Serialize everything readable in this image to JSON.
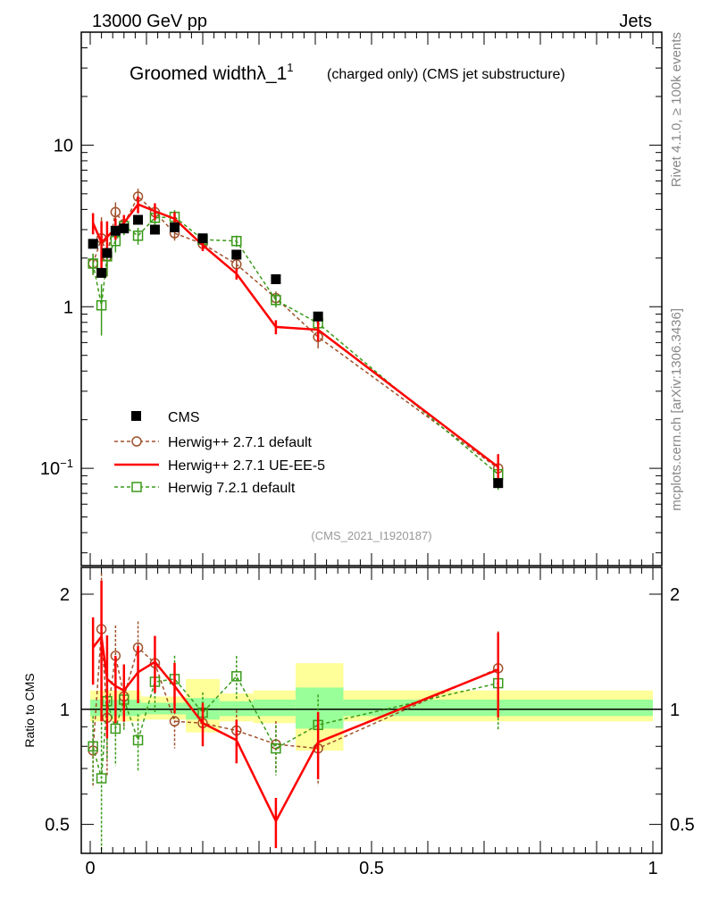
{
  "header": {
    "energy_label": "13000 GeV pp",
    "category_label": "Jets"
  },
  "plot_title": {
    "main": "Groomed width",
    "symbol": "λ_1",
    "superscript": "1",
    "subtitle": "(charged only) (CMS jet substructure)"
  },
  "side_labels": {
    "rivet": "Rivet 4.1.0, ≥ 100k events",
    "mcplots": "mcplots.cern.ch [arXiv:1306.3436]"
  },
  "analysis_id": "(CMS_2021_I1920187)",
  "colors": {
    "data": "#000000",
    "herwigpp_default": "#a0522d",
    "herwigpp_ueee5": "#ff0000",
    "herwig721": "#3a9a1a",
    "band_outer": "#ffff99",
    "band_inner": "#99ff99"
  },
  "legend": {
    "items": [
      {
        "key": "data",
        "label": "CMS"
      },
      {
        "key": "hpp_default",
        "label": "Herwig++ 2.7.1 default"
      },
      {
        "key": "hpp_ueee5",
        "label": "Herwig++ 2.7.1 UE-EE-5"
      },
      {
        "key": "h721",
        "label": "Herwig 7.2.1 default"
      }
    ]
  },
  "chart_data": [
    {
      "type": "scatter",
      "panel": "main",
      "title": "Groomed width λ_1^1 (charged only) (CMS jet substructure)",
      "xlabel": "",
      "ylabel": "",
      "yscale": "log",
      "xlim": [
        -0.015,
        1.015
      ],
      "ylim": [
        0.025,
        50
      ],
      "yticks": [
        {
          "value": 10,
          "label": "10"
        },
        {
          "value": 1,
          "label": "1"
        },
        {
          "value": 0.1,
          "label": "10",
          "sup": "−1"
        }
      ],
      "x": [
        0.005,
        0.02,
        0.03,
        0.045,
        0.06,
        0.085,
        0.115,
        0.15,
        0.2,
        0.26,
        0.33,
        0.405,
        0.725
      ],
      "series": [
        {
          "name": "CMS",
          "style": "markers-square-filled",
          "values": [
            2.45,
            1.62,
            2.15,
            2.95,
            3.05,
            3.45,
            3.0,
            3.1,
            2.65,
            2.1,
            1.48,
            0.87,
            0.081
          ]
        },
        {
          "name": "Herwig++ 2.7.1 default",
          "style": "dashed-open-circle",
          "values": [
            1.85,
            2.65,
            2.05,
            3.85,
            3.25,
            4.8,
            3.85,
            2.85,
            2.45,
            1.83,
            1.13,
            0.65,
            0.1
          ]
        },
        {
          "name": "Herwig++ 2.7.1 UE-EE-5",
          "style": "solid-line",
          "values": [
            3.3,
            2.5,
            2.7,
            3.05,
            3.3,
            4.3,
            3.9,
            3.5,
            2.4,
            1.6,
            0.75,
            0.72,
            0.102
          ]
        },
        {
          "name": "Herwig 7.2.1 default",
          "style": "dashed-open-square",
          "values": [
            1.85,
            1.02,
            2.05,
            2.55,
            3.15,
            2.75,
            3.55,
            3.6,
            2.6,
            2.55,
            1.1,
            0.79,
            0.092
          ]
        }
      ]
    },
    {
      "type": "line",
      "panel": "ratio",
      "ylabel": "Ratio to CMS",
      "xlim": [
        -0.015,
        1.015
      ],
      "ylim": [
        0.42,
        2.35
      ],
      "yscale": "log",
      "yticks": [
        {
          "value": 2,
          "label": "2"
        },
        {
          "value": 1,
          "label": "1"
        },
        {
          "value": 0.5,
          "label": "0.5"
        }
      ],
      "xticks": [
        {
          "value": 0,
          "label": "0"
        },
        {
          "value": 0.5,
          "label": "0.5"
        },
        {
          "value": 1,
          "label": "1"
        }
      ],
      "x": [
        0.005,
        0.02,
        0.03,
        0.045,
        0.06,
        0.085,
        0.115,
        0.15,
        0.2,
        0.26,
        0.33,
        0.405,
        0.725
      ],
      "series": [
        {
          "name": "Herwig++ 2.7.1 default",
          "values": [
            0.78,
            1.62,
            0.95,
            1.38,
            1.08,
            1.45,
            1.32,
            0.93,
            0.92,
            0.88,
            0.81,
            0.79,
            1.28
          ]
        },
        {
          "name": "Herwig++ 2.7.1 UE-EE-5",
          "values": [
            1.45,
            1.55,
            1.2,
            1.15,
            1.12,
            1.25,
            1.33,
            1.15,
            0.92,
            0.83,
            0.51,
            0.82,
            1.27
          ]
        },
        {
          "name": "Herwig 7.2.1 default",
          "values": [
            0.8,
            0.66,
            1.05,
            0.89,
            1.06,
            0.83,
            1.18,
            1.2,
            0.98,
            1.22,
            0.79,
            0.91,
            1.17
          ]
        }
      ],
      "uncertainty_bands": [
        {
          "x0": 0.0,
          "x1": 0.09,
          "outer": [
            0.93,
            1.12
          ],
          "inner": [
            0.96,
            1.06
          ]
        },
        {
          "x0": 0.09,
          "x1": 0.17,
          "outer": [
            0.94,
            1.08
          ],
          "inner": [
            0.97,
            1.04
          ]
        },
        {
          "x0": 0.17,
          "x1": 0.23,
          "outer": [
            0.87,
            1.2
          ],
          "inner": [
            0.94,
            1.07
          ]
        },
        {
          "x0": 0.23,
          "x1": 0.29,
          "outer": [
            0.93,
            1.1
          ],
          "inner": [
            0.96,
            1.05
          ]
        },
        {
          "x0": 0.29,
          "x1": 0.365,
          "outer": [
            0.92,
            1.12
          ],
          "inner": [
            0.96,
            1.06
          ]
        },
        {
          "x0": 0.365,
          "x1": 0.45,
          "outer": [
            0.78,
            1.32
          ],
          "inner": [
            0.89,
            1.14
          ]
        },
        {
          "x0": 0.45,
          "x1": 1.0,
          "outer": [
            0.93,
            1.12
          ],
          "inner": [
            0.96,
            1.06
          ]
        }
      ]
    }
  ]
}
